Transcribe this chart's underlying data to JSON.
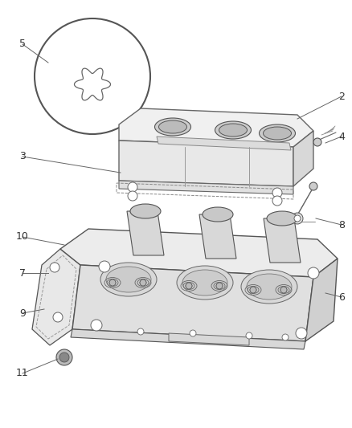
{
  "bg_color": "#ffffff",
  "lc": "#aaaaaa",
  "dc": "#666666",
  "tc": "#444444",
  "figsize": [
    4.38,
    5.33
  ],
  "dpi": 100
}
